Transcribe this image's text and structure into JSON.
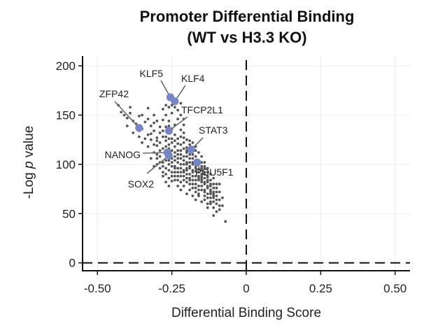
{
  "chart_data": {
    "type": "scatter",
    "title": "Promoter Differential Binding",
    "subtitle": "(WT vs H3.3 KO)",
    "xlabel": "Differential Binding Score",
    "ylabel_prefix": "-Log ",
    "ylabel_italic": "p",
    "ylabel_suffix": " value",
    "xlim": [
      -0.55,
      0.55
    ],
    "ylim": [
      -8,
      210
    ],
    "xticks": [
      -0.5,
      -0.25,
      0,
      0.25,
      0.5
    ],
    "xtick_labels": [
      "-0.50",
      "-0.25",
      "0",
      "0.25",
      "0.50"
    ],
    "yticks": [
      0,
      50,
      100,
      150,
      200
    ],
    "ytick_labels": [
      "0",
      "50",
      "100",
      "150",
      "200"
    ],
    "grid": true,
    "reference_lines": {
      "x": 0,
      "y": 0
    },
    "colors": {
      "points": "#555555",
      "highlight": "#7685c4",
      "leader": "#6a6a6a"
    },
    "highlighted_genes": [
      {
        "name": "KLF5",
        "x": -0.255,
        "y": 168
      },
      {
        "name": "KLF4",
        "x": -0.24,
        "y": 164
      },
      {
        "name": "ZFP42",
        "x": -0.36,
        "y": 137
      },
      {
        "name": "TFCP2L1",
        "x": -0.26,
        "y": 134
      },
      {
        "name": "STAT3",
        "x": -0.185,
        "y": 115
      },
      {
        "name": "NANOG",
        "x": -0.265,
        "y": 112
      },
      {
        "name": "SOX2",
        "x": -0.26,
        "y": 109
      },
      {
        "name": "POU5F1",
        "x": -0.165,
        "y": 102
      }
    ],
    "points": [
      [
        -0.42,
        153
      ],
      [
        -0.41,
        150
      ],
      [
        -0.4,
        147
      ],
      [
        -0.39,
        152
      ],
      [
        -0.38,
        144
      ],
      [
        -0.37,
        141
      ],
      [
        -0.36,
        149
      ],
      [
        -0.35,
        136
      ],
      [
        -0.34,
        143
      ],
      [
        -0.33,
        130
      ],
      [
        -0.32,
        139
      ],
      [
        -0.31,
        134
      ],
      [
        -0.3,
        127
      ],
      [
        -0.29,
        132
      ],
      [
        -0.28,
        145
      ],
      [
        -0.27,
        124
      ],
      [
        -0.26,
        139
      ],
      [
        -0.25,
        152
      ],
      [
        -0.24,
        130
      ],
      [
        -0.23,
        121
      ],
      [
        -0.22,
        135
      ],
      [
        -0.21,
        127
      ],
      [
        -0.2,
        117
      ],
      [
        -0.19,
        124
      ],
      [
        -0.18,
        110
      ],
      [
        -0.17,
        114
      ],
      [
        -0.16,
        104
      ],
      [
        -0.15,
        98
      ],
      [
        -0.14,
        92
      ],
      [
        -0.13,
        87
      ],
      [
        -0.4,
        139
      ],
      [
        -0.38,
        132
      ],
      [
        -0.36,
        128
      ],
      [
        -0.35,
        122
      ],
      [
        -0.33,
        118
      ],
      [
        -0.32,
        125
      ],
      [
        -0.31,
        112
      ],
      [
        -0.3,
        119
      ],
      [
        -0.29,
        108
      ],
      [
        -0.28,
        116
      ],
      [
        -0.27,
        104
      ],
      [
        -0.26,
        120
      ],
      [
        -0.25,
        98
      ],
      [
        -0.24,
        112
      ],
      [
        -0.23,
        106
      ],
      [
        -0.22,
        100
      ],
      [
        -0.21,
        94
      ],
      [
        -0.2,
        108
      ],
      [
        -0.19,
        96
      ],
      [
        -0.18,
        88
      ],
      [
        -0.17,
        93
      ],
      [
        -0.16,
        84
      ],
      [
        -0.15,
        90
      ],
      [
        -0.14,
        80
      ],
      [
        -0.13,
        76
      ],
      [
        -0.12,
        70
      ],
      [
        -0.11,
        66
      ],
      [
        -0.1,
        60
      ],
      [
        -0.09,
        54
      ],
      [
        -0.07,
        42
      ],
      [
        -0.3,
        100
      ],
      [
        -0.29,
        96
      ],
      [
        -0.28,
        92
      ],
      [
        -0.27,
        90
      ],
      [
        -0.26,
        86
      ],
      [
        -0.25,
        83
      ],
      [
        -0.24,
        92
      ],
      [
        -0.23,
        88
      ],
      [
        -0.22,
        82
      ],
      [
        -0.21,
        78
      ],
      [
        -0.2,
        86
      ],
      [
        -0.19,
        80
      ],
      [
        -0.18,
        76
      ],
      [
        -0.17,
        72
      ],
      [
        -0.16,
        68
      ],
      [
        -0.15,
        74
      ],
      [
        -0.14,
        64
      ],
      [
        -0.13,
        60
      ],
      [
        -0.12,
        78
      ],
      [
        -0.11,
        56
      ],
      [
        -0.32,
        106
      ],
      [
        -0.31,
        98
      ],
      [
        -0.3,
        110
      ],
      [
        -0.29,
        114
      ],
      [
        -0.28,
        102
      ],
      [
        -0.27,
        118
      ],
      [
        -0.26,
        112
      ],
      [
        -0.25,
        126
      ],
      [
        -0.24,
        118
      ],
      [
        -0.23,
        114
      ],
      [
        -0.22,
        110
      ],
      [
        -0.21,
        116
      ],
      [
        -0.2,
        102
      ],
      [
        -0.19,
        106
      ],
      [
        -0.18,
        100
      ],
      [
        -0.17,
        98
      ],
      [
        -0.16,
        95
      ],
      [
        -0.15,
        88
      ],
      [
        -0.14,
        86
      ],
      [
        -0.13,
        82
      ],
      [
        -0.28,
        134
      ],
      [
        -0.27,
        138
      ],
      [
        -0.26,
        144
      ],
      [
        -0.25,
        136
      ],
      [
        -0.24,
        140
      ],
      [
        -0.23,
        146
      ],
      [
        -0.22,
        128
      ],
      [
        -0.21,
        132
      ],
      [
        -0.2,
        125
      ],
      [
        -0.19,
        120
      ],
      [
        -0.18,
        122
      ],
      [
        -0.17,
        118
      ],
      [
        -0.16,
        112
      ],
      [
        -0.15,
        108
      ],
      [
        -0.14,
        102
      ],
      [
        -0.13,
        96
      ],
      [
        -0.12,
        90
      ],
      [
        -0.11,
        86
      ],
      [
        -0.1,
        80
      ],
      [
        -0.09,
        72
      ],
      [
        -0.35,
        150
      ],
      [
        -0.33,
        146
      ],
      [
        -0.31,
        142
      ],
      [
        -0.29,
        138
      ],
      [
        -0.27,
        150
      ],
      [
        -0.26,
        158
      ],
      [
        -0.25,
        160
      ],
      [
        -0.23,
        155
      ],
      [
        -0.22,
        150
      ],
      [
        -0.21,
        140
      ],
      [
        -0.24,
        104
      ],
      [
        -0.23,
        96
      ],
      [
        -0.22,
        92
      ],
      [
        -0.21,
        88
      ],
      [
        -0.2,
        94
      ],
      [
        -0.19,
        90
      ],
      [
        -0.18,
        84
      ],
      [
        -0.17,
        80
      ],
      [
        -0.16,
        78
      ],
      [
        -0.15,
        82
      ],
      [
        -0.14,
        74
      ],
      [
        -0.13,
        70
      ],
      [
        -0.12,
        66
      ],
      [
        -0.11,
        62
      ],
      [
        -0.1,
        68
      ],
      [
        -0.12,
        84
      ],
      [
        -0.11,
        76
      ],
      [
        -0.1,
        72
      ],
      [
        -0.13,
        92
      ],
      [
        -0.14,
        96
      ],
      [
        -0.26,
        100
      ],
      [
        -0.25,
        106
      ],
      [
        -0.24,
        98
      ],
      [
        -0.23,
        102
      ],
      [
        -0.22,
        106
      ],
      [
        -0.21,
        100
      ],
      [
        -0.2,
        96
      ],
      [
        -0.19,
        102
      ],
      [
        -0.18,
        94
      ],
      [
        -0.17,
        88
      ],
      [
        -0.16,
        92
      ],
      [
        -0.15,
        86
      ],
      [
        -0.14,
        90
      ],
      [
        -0.13,
        84
      ],
      [
        -0.12,
        80
      ],
      [
        -0.11,
        72
      ],
      [
        -0.1,
        76
      ],
      [
        -0.09,
        64
      ],
      [
        -0.09,
        80
      ],
      [
        -0.08,
        58
      ],
      [
        -0.36,
        134
      ],
      [
        -0.34,
        126
      ],
      [
        -0.32,
        131
      ],
      [
        -0.3,
        124
      ],
      [
        -0.28,
        128
      ],
      [
        -0.26,
        126
      ],
      [
        -0.24,
        124
      ],
      [
        -0.22,
        120
      ],
      [
        -0.2,
        114
      ],
      [
        -0.18,
        106
      ],
      [
        -0.17,
        108
      ],
      [
        -0.16,
        100
      ],
      [
        -0.15,
        102
      ],
      [
        -0.14,
        98
      ],
      [
        -0.15,
        94
      ],
      [
        -0.16,
        88
      ],
      [
        -0.17,
        84
      ],
      [
        -0.18,
        92
      ],
      [
        -0.19,
        86
      ],
      [
        -0.2,
        90
      ],
      [
        -0.27,
        110
      ],
      [
        -0.26,
        116
      ],
      [
        -0.25,
        114
      ],
      [
        -0.24,
        108
      ],
      [
        -0.23,
        110
      ],
      [
        -0.22,
        114
      ],
      [
        -0.21,
        108
      ],
      [
        -0.2,
        112
      ],
      [
        -0.19,
        110
      ],
      [
        -0.18,
        114
      ],
      [
        -0.31,
        120
      ],
      [
        -0.29,
        122
      ],
      [
        -0.27,
        128
      ],
      [
        -0.25,
        122
      ],
      [
        -0.23,
        126
      ],
      [
        -0.21,
        122
      ],
      [
        -0.19,
        114
      ],
      [
        -0.17,
        104
      ],
      [
        -0.15,
        96
      ],
      [
        -0.13,
        88
      ],
      [
        -0.28,
        88
      ],
      [
        -0.27,
        82
      ],
      [
        -0.26,
        78
      ],
      [
        -0.25,
        88
      ],
      [
        -0.24,
        84
      ],
      [
        -0.23,
        78
      ],
      [
        -0.22,
        74
      ],
      [
        -0.21,
        84
      ],
      [
        -0.2,
        70
      ],
      [
        -0.19,
        74
      ],
      [
        -0.18,
        68
      ],
      [
        -0.17,
        64
      ],
      [
        -0.16,
        70
      ],
      [
        -0.15,
        62
      ],
      [
        -0.14,
        68
      ],
      [
        -0.13,
        56
      ],
      [
        -0.12,
        60
      ],
      [
        -0.11,
        68
      ],
      [
        -0.1,
        52
      ],
      [
        -0.12,
        72
      ],
      [
        -0.43,
        160
      ],
      [
        -0.39,
        158
      ],
      [
        -0.33,
        157
      ],
      [
        -0.31,
        150
      ],
      [
        -0.3,
        144
      ],
      [
        -0.28,
        156
      ],
      [
        -0.27,
        160
      ],
      [
        -0.24,
        158
      ],
      [
        -0.22,
        162
      ],
      [
        -0.21,
        146
      ],
      [
        -0.26,
        94
      ],
      [
        -0.25,
        92
      ],
      [
        -0.24,
        88
      ],
      [
        -0.23,
        84
      ],
      [
        -0.22,
        88
      ],
      [
        -0.21,
        92
      ],
      [
        -0.2,
        82
      ],
      [
        -0.19,
        84
      ],
      [
        -0.18,
        80
      ],
      [
        -0.17,
        76
      ],
      [
        -0.16,
        74
      ],
      [
        -0.15,
        78
      ],
      [
        -0.14,
        72
      ],
      [
        -0.13,
        66
      ],
      [
        -0.12,
        62
      ],
      [
        -0.11,
        80
      ],
      [
        -0.1,
        64
      ],
      [
        -0.09,
        58
      ],
      [
        -0.08,
        66
      ],
      [
        -0.11,
        48
      ],
      [
        -0.3,
        106
      ],
      [
        -0.29,
        102
      ],
      [
        -0.28,
        98
      ],
      [
        -0.27,
        96
      ],
      [
        -0.26,
        104
      ],
      [
        -0.25,
        102
      ],
      [
        -0.24,
        96
      ],
      [
        -0.23,
        92
      ],
      [
        -0.22,
        96
      ],
      [
        -0.21,
        104
      ],
      [
        -0.2,
        100
      ],
      [
        -0.19,
        98
      ],
      [
        -0.18,
        102
      ],
      [
        -0.17,
        96
      ],
      [
        -0.16,
        86
      ],
      [
        -0.15,
        84
      ],
      [
        -0.14,
        82
      ],
      [
        -0.13,
        78
      ],
      [
        -0.12,
        74
      ],
      [
        -0.11,
        70
      ]
    ]
  }
}
